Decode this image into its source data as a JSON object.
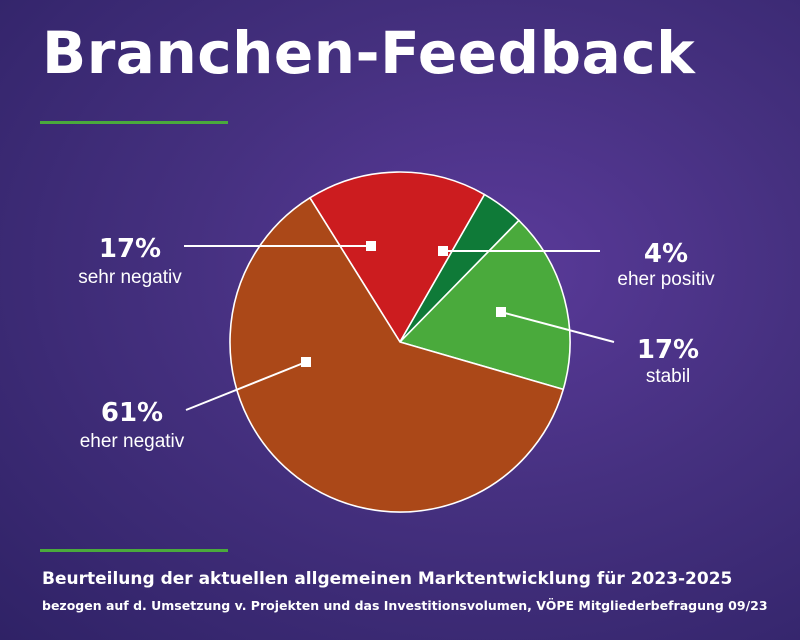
{
  "header": {
    "title": "Branchen-Feedback"
  },
  "footer": {
    "title": "Beurteilung der aktuellen allgemeinen Marktentwicklung für 2023-2025",
    "subtitle": "bezogen auf d. Umsetzung v. Projekten und das Investitionsvolumen, VÖPE Mitgliederbefragung 09/23"
  },
  "colors": {
    "accent_rule": "#4aaa3c",
    "background": "#45307f"
  },
  "chart_data": {
    "type": "pie",
    "start_angle_deg": -32,
    "direction": "clockwise",
    "slices": [
      {
        "label": "sehr negativ",
        "value": 17,
        "display": "17%",
        "color": "#cc1c1f"
      },
      {
        "label": "eher positiv",
        "value": 4,
        "display": "4%",
        "color": "#0f7a38"
      },
      {
        "label": "stabil",
        "value": 17,
        "display": "17%",
        "color": "#4aaa3c"
      },
      {
        "label": "eher negativ",
        "value": 61,
        "display": "61%",
        "color": "#ab4818"
      }
    ]
  }
}
